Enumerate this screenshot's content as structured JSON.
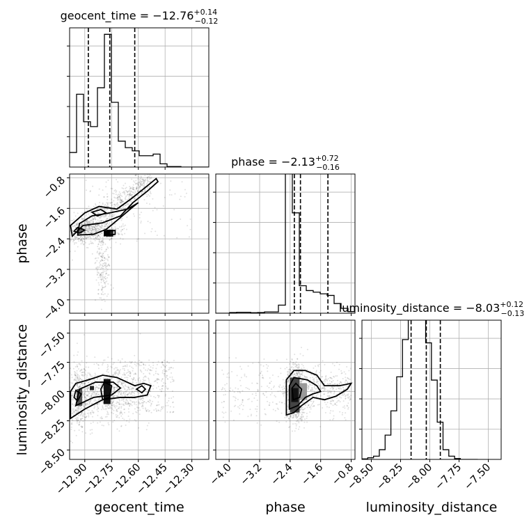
{
  "chart_data": {
    "type": "corner",
    "parameters": [
      "geocent_time",
      "phase",
      "luminosity_distance"
    ],
    "grid": true,
    "titles": [
      {
        "param": "geocent_time",
        "prefix": "geocent_time = ",
        "median": "−12.76",
        "plus": "+0.14",
        "minus": "−0.12"
      },
      {
        "param": "phase",
        "prefix": "phase = ",
        "median": "−2.13",
        "plus": "+0.72",
        "minus": "−0.16"
      },
      {
        "param": "luminosity_distance",
        "prefix": "luminosity_distance = ",
        "median": "−8.03",
        "plus": "+0.12",
        "minus": "−0.13"
      }
    ],
    "axes": {
      "geocent_time": {
        "range": [
          -12.985,
          -12.205
        ],
        "ticks": [
          -12.9,
          -12.75,
          -12.6,
          -12.45,
          -12.3
        ],
        "tick_labels": [
          "−12.90",
          "−12.75",
          "−12.60",
          "−12.45",
          "−12.30"
        ],
        "label": "geocent_time"
      },
      "phase": {
        "range": [
          -4.35,
          -0.7
        ],
        "ticks": [
          -4.0,
          -3.2,
          -2.4,
          -1.6,
          -0.8
        ],
        "tick_labels": [
          "−4.0",
          "−3.2",
          "−2.4",
          "−1.6",
          "−0.8"
        ],
        "label": "phase"
      },
      "luminosity_distance": {
        "range": [
          -8.58,
          -7.39
        ],
        "ticks": [
          -8.5,
          -8.25,
          -8.0,
          -7.75,
          -7.5
        ],
        "tick_labels": [
          "−8.50",
          "−8.25",
          "−8.00",
          "−7.75",
          "−7.50"
        ],
        "label": "luminosity_distance"
      }
    },
    "histograms": [
      {
        "param": "geocent_time",
        "bin_edges": [
          -12.985,
          -12.946,
          -12.907,
          -12.868,
          -12.829,
          -12.79,
          -12.751,
          -12.712,
          -12.673,
          -12.634,
          -12.595,
          -12.556,
          -12.517,
          -12.478,
          -12.439,
          -12.4,
          -12.361,
          -12.322,
          -12.283,
          -12.244,
          -12.205
        ],
        "counts": [
          0.09,
          0.45,
          0.28,
          0.25,
          0.49,
          0.82,
          0.4,
          0.16,
          0.12,
          0.1,
          0.07,
          0.07,
          0.08,
          0.02,
          0.003,
          0.003,
          0,
          0,
          0,
          0
        ],
        "quantiles": [
          -12.88,
          -12.76,
          -12.62
        ]
      },
      {
        "param": "phase",
        "bin_edges": [
          -4.35,
          -4.1675,
          -3.985,
          -3.8025,
          -3.62,
          -3.4375,
          -3.255,
          -3.0725,
          -2.89,
          -2.7075,
          -2.525,
          -2.3425,
          -2.16,
          -1.9775,
          -1.795,
          -1.6125,
          -1.43,
          -1.2475,
          -1.065,
          -0.8825,
          -0.7
        ],
        "counts": [
          0,
          0,
          0.004,
          0.006,
          0.006,
          0.003,
          0.004,
          0.008,
          0.008,
          0.05,
          0.94,
          0.62,
          0.17,
          0.14,
          0.13,
          0.12,
          0.11,
          0.06,
          0.03,
          0.01
        ],
        "quantiles": [
          -2.29,
          -2.13,
          -1.41
        ]
      },
      {
        "param": "luminosity_distance",
        "bin_edges": [
          -8.58,
          -8.5305,
          -8.481,
          -8.4315,
          -8.382,
          -8.3325,
          -8.283,
          -8.2335,
          -8.184,
          -8.1345,
          -8.085,
          -8.0355,
          -7.986,
          -7.9365,
          -7.887,
          -7.8375,
          -7.788,
          -7.7385,
          -7.689,
          -7.6395,
          -7.59
        ],
        "counts": [
          0.003,
          0.01,
          0.02,
          0.06,
          0.15,
          0.3,
          0.51,
          0.74,
          0.9,
          1.0,
          0.93,
          0.72,
          0.49,
          0.23,
          0.06,
          0.02,
          0.005,
          0,
          0,
          0
        ],
        "quantiles": [
          -8.16,
          -8.03,
          -7.91
        ]
      }
    ],
    "contour_panels": [
      {
        "x": "geocent_time",
        "y": "phase",
        "density_peaks": [
          [
            -12.77,
            -2.25
          ],
          [
            -12.93,
            -2.2
          ],
          [
            -12.8,
            -1.7
          ],
          [
            -12.7,
            -1.8
          ]
        ]
      },
      {
        "x": "geocent_time",
        "y": "luminosity_distance",
        "density_peaks": [
          [
            -12.77,
            -8.0
          ],
          [
            -12.93,
            -8.05
          ],
          [
            -12.85,
            -7.97
          ],
          [
            -12.6,
            -7.98
          ]
        ]
      },
      {
        "x": "phase",
        "y": "luminosity_distance",
        "density_peaks": [
          [
            -2.25,
            -8.03
          ],
          [
            -2.1,
            -8.0
          ],
          [
            -1.6,
            -8.05
          ]
        ]
      }
    ]
  }
}
